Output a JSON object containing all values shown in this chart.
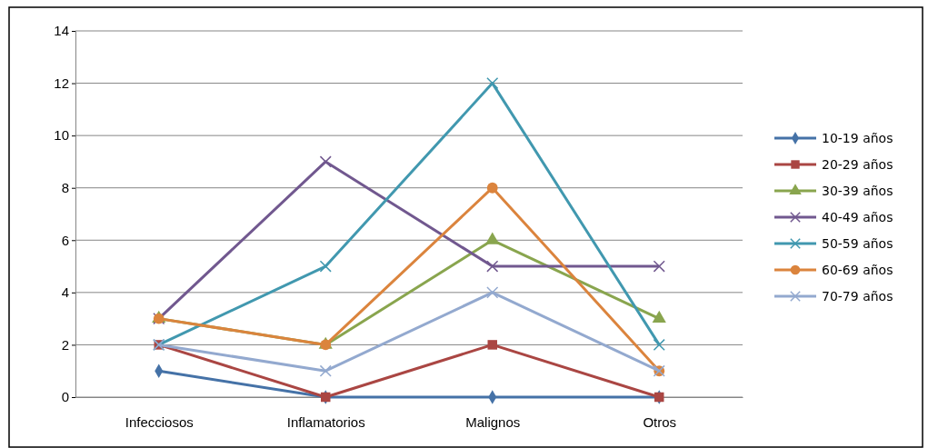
{
  "chart_data": {
    "type": "line",
    "categories": [
      "Infecciosos",
      "Inflamatorios",
      "Malignos",
      "Otros"
    ],
    "ylim": [
      0,
      14
    ],
    "yticks": [
      0,
      2,
      4,
      6,
      8,
      10,
      12,
      14
    ],
    "grid": "y",
    "legend": "right",
    "series": [
      {
        "name": "10-19 años",
        "color": "#4572a7",
        "marker": "diamond",
        "values": [
          1,
          0,
          0,
          0
        ]
      },
      {
        "name": "20-29 años",
        "color": "#aa4643",
        "marker": "square",
        "values": [
          2,
          0,
          2,
          0
        ]
      },
      {
        "name": "30-39 años",
        "color": "#89a54e",
        "marker": "triangle",
        "values": [
          3,
          2,
          6,
          3
        ]
      },
      {
        "name": "40-49 años",
        "color": "#71588f",
        "marker": "cross",
        "values": [
          3,
          9,
          5,
          5
        ]
      },
      {
        "name": "50-59 años",
        "color": "#4198af",
        "marker": "cross",
        "values": [
          2,
          5,
          12,
          2
        ]
      },
      {
        "name": "60-69 años",
        "color": "#db843d",
        "marker": "circle",
        "values": [
          3,
          2,
          8,
          1
        ]
      },
      {
        "name": "70-79 años",
        "color": "#93a9cf",
        "marker": "cross",
        "values": [
          2,
          1,
          4,
          1
        ]
      }
    ]
  }
}
